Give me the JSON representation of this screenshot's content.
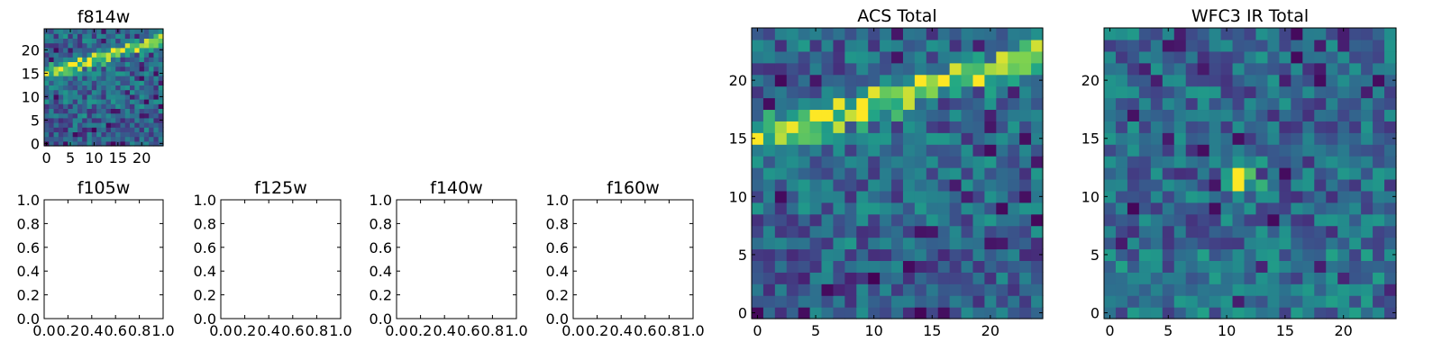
{
  "chart_data": [
    {
      "type": "heatmap",
      "title": "f814w",
      "xlabel": "",
      "ylabel": "",
      "xlim": [
        -0.5,
        24.5
      ],
      "ylim": [
        -0.5,
        24.5
      ],
      "xticks": [
        0,
        5,
        10,
        15,
        20
      ],
      "yticks": [
        0,
        5,
        10,
        15,
        20
      ],
      "grid": false,
      "colormap": "viridis",
      "source": "ACS Total",
      "description": "25x25 pixel cutout, diagonal bright band rising from y~15 at left to y~22 at right"
    },
    {
      "type": "heatmap",
      "title": "f105w",
      "xlim": [
        0,
        1
      ],
      "ylim": [
        0,
        1
      ],
      "xticks": [
        "0.0",
        "0.2",
        "0.4",
        "0.6",
        "0.8",
        "1.0"
      ],
      "yticks": [
        "0.0",
        "0.2",
        "0.4",
        "0.6",
        "0.8",
        "1.0"
      ],
      "grid": false,
      "empty": true
    },
    {
      "type": "heatmap",
      "title": "f125w",
      "xlim": [
        0,
        1
      ],
      "ylim": [
        0,
        1
      ],
      "xticks": [
        "0.0",
        "0.2",
        "0.4",
        "0.6",
        "0.8",
        "1.0"
      ],
      "yticks": [
        "0.0",
        "0.2",
        "0.4",
        "0.6",
        "0.8",
        "1.0"
      ],
      "grid": false,
      "empty": true
    },
    {
      "type": "heatmap",
      "title": "f140w",
      "xlim": [
        0,
        1
      ],
      "ylim": [
        0,
        1
      ],
      "xticks": [
        "0.0",
        "0.2",
        "0.4",
        "0.6",
        "0.8",
        "1.0"
      ],
      "yticks": [
        "0.0",
        "0.2",
        "0.4",
        "0.6",
        "0.8",
        "1.0"
      ],
      "grid": false,
      "empty": true
    },
    {
      "type": "heatmap",
      "title": "f160w",
      "xlim": [
        0,
        1
      ],
      "ylim": [
        0,
        1
      ],
      "xticks": [
        "0.0",
        "0.2",
        "0.4",
        "0.6",
        "0.8",
        "1.0"
      ],
      "yticks": [
        "0.0",
        "0.2",
        "0.4",
        "0.6",
        "0.8",
        "1.0"
      ],
      "grid": false,
      "empty": true
    },
    {
      "type": "heatmap",
      "title": "ACS Total",
      "xlim": [
        -0.5,
        24.5
      ],
      "ylim": [
        -0.5,
        24.5
      ],
      "xticks": [
        0,
        5,
        10,
        15,
        20
      ],
      "yticks": [
        0,
        5,
        10,
        15,
        20
      ],
      "grid": false,
      "colormap": "viridis",
      "description": "25x25 pixel cutout with a bright diagonal arc from (0,15) to (24,22)"
    },
    {
      "type": "heatmap",
      "title": "WFC3 IR Total",
      "xlim": [
        -0.5,
        24.5
      ],
      "ylim": [
        -0.5,
        24.5
      ],
      "xticks": [
        0,
        5,
        10,
        15,
        20
      ],
      "yticks": [
        0,
        5,
        10,
        15,
        20
      ],
      "grid": false,
      "colormap": "viridis",
      "description": "25x25 pixel cutout with a compact bright source near (11,12)"
    }
  ]
}
